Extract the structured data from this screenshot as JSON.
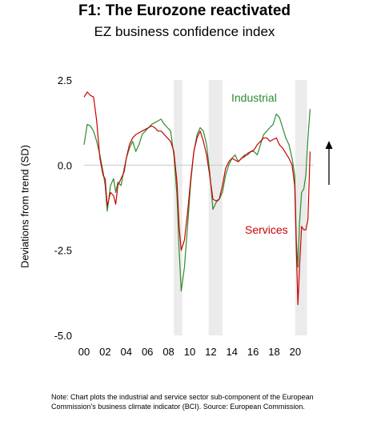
{
  "title": "F1: The Eurozone reactivated",
  "subtitle": "EZ business confidence index",
  "note": "Note: Chart plots the industrial and service sector sub-component of the European Commission's business climate indicator (BCI). Source: European Commission.",
  "chart_data": {
    "type": "line",
    "title": "F1: The Eurozone reactivated",
    "subtitle": "EZ business confidence index",
    "ylabel": "Deviations from trend (SD)",
    "xlabel": "",
    "xlim": [
      2000,
      2021.75
    ],
    "ylim": [
      -5.0,
      2.5
    ],
    "yticks": [
      "2.5",
      "0.0",
      "-2.5",
      "-5.0"
    ],
    "xticks": [
      "00",
      "02",
      "04",
      "06",
      "08",
      "10",
      "12",
      "14",
      "16",
      "18",
      "20"
    ],
    "shaded_periods": [
      [
        2008.5,
        2009.3
      ],
      [
        2011.8,
        2013.1
      ],
      [
        2020.0,
        2021.1
      ]
    ],
    "annotations": [
      {
        "text": "Industrial",
        "color": "#2e8b2e"
      },
      {
        "text": "Services",
        "color": "#cc0000"
      }
    ],
    "arrow": "up",
    "series": [
      {
        "name": "Industrial",
        "color": "#2e8b2e",
        "x": [
          2000.0,
          2000.3,
          2000.6,
          2000.9,
          2001.2,
          2001.5,
          2001.8,
          2002.0,
          2002.2,
          2002.5,
          2002.8,
          2003.0,
          2003.2,
          2003.5,
          2003.8,
          2004.0,
          2004.3,
          2004.6,
          2004.9,
          2005.2,
          2005.5,
          2005.8,
          2006.1,
          2006.4,
          2006.7,
          2007.0,
          2007.3,
          2007.6,
          2007.9,
          2008.2,
          2008.5,
          2008.8,
          2009.0,
          2009.2,
          2009.5,
          2009.8,
          2010.1,
          2010.4,
          2010.7,
          2011.0,
          2011.3,
          2011.6,
          2011.9,
          2012.2,
          2012.5,
          2012.8,
          2013.1,
          2013.4,
          2013.7,
          2014.0,
          2014.3,
          2014.6,
          2014.9,
          2015.2,
          2015.5,
          2015.8,
          2016.1,
          2016.4,
          2016.7,
          2017.0,
          2017.3,
          2017.6,
          2017.9,
          2018.2,
          2018.5,
          2018.8,
          2019.1,
          2019.4,
          2019.7,
          2019.95,
          2020.1,
          2020.25,
          2020.4,
          2020.6,
          2020.8,
          2021.0,
          2021.2,
          2021.4
        ],
        "values": [
          0.6,
          1.2,
          1.15,
          1.0,
          0.7,
          0.3,
          -0.2,
          -0.6,
          -1.35,
          -0.6,
          -0.4,
          -0.8,
          -0.5,
          -0.6,
          -0.1,
          0.2,
          0.5,
          0.7,
          0.4,
          0.6,
          0.9,
          1.0,
          1.1,
          1.2,
          1.25,
          1.3,
          1.35,
          1.2,
          1.1,
          1.0,
          0.3,
          -0.9,
          -2.5,
          -3.7,
          -3.0,
          -1.8,
          -0.5,
          0.4,
          0.9,
          1.1,
          1.0,
          0.6,
          -0.2,
          -1.3,
          -1.1,
          -1.0,
          -0.8,
          -0.3,
          0.0,
          0.2,
          0.3,
          0.1,
          0.2,
          0.3,
          0.3,
          0.4,
          0.4,
          0.3,
          0.6,
          0.9,
          1.0,
          1.1,
          1.2,
          1.5,
          1.4,
          1.1,
          0.8,
          0.6,
          0.2,
          -0.3,
          -2.2,
          -3.0,
          -1.7,
          -0.8,
          -0.7,
          -0.3,
          0.8,
          1.65
        ]
      },
      {
        "name": "Services",
        "color": "#cc0000",
        "x": [
          2000.0,
          2000.3,
          2000.6,
          2000.9,
          2001.2,
          2001.5,
          2001.8,
          2002.0,
          2002.2,
          2002.5,
          2002.8,
          2003.0,
          2003.2,
          2003.5,
          2003.8,
          2004.0,
          2004.3,
          2004.6,
          2004.9,
          2005.2,
          2005.5,
          2005.8,
          2006.1,
          2006.4,
          2006.7,
          2007.0,
          2007.3,
          2007.6,
          2007.9,
          2008.2,
          2008.5,
          2008.8,
          2009.0,
          2009.2,
          2009.5,
          2009.8,
          2010.1,
          2010.4,
          2010.7,
          2011.0,
          2011.3,
          2011.6,
          2011.9,
          2012.2,
          2012.5,
          2012.8,
          2013.1,
          2013.4,
          2013.7,
          2014.0,
          2014.3,
          2014.6,
          2014.9,
          2015.2,
          2015.5,
          2015.8,
          2016.1,
          2016.4,
          2016.7,
          2017.0,
          2017.3,
          2017.6,
          2017.9,
          2018.2,
          2018.5,
          2018.8,
          2019.1,
          2019.4,
          2019.7,
          2019.95,
          2020.1,
          2020.25,
          2020.4,
          2020.6,
          2020.8,
          2021.0,
          2021.2,
          2021.4
        ],
        "values": [
          2.0,
          2.15,
          2.05,
          2.0,
          1.3,
          0.2,
          -0.3,
          -0.4,
          -1.2,
          -0.8,
          -0.9,
          -1.15,
          -0.6,
          -0.4,
          -0.2,
          0.2,
          0.6,
          0.8,
          0.9,
          0.95,
          1.0,
          1.05,
          1.1,
          1.15,
          1.1,
          1.0,
          1.0,
          0.9,
          0.8,
          0.7,
          0.4,
          -0.5,
          -1.8,
          -2.5,
          -2.2,
          -1.4,
          -0.4,
          0.4,
          0.8,
          1.0,
          0.7,
          0.3,
          -0.3,
          -1.0,
          -1.05,
          -1.0,
          -0.6,
          -0.1,
          0.1,
          0.2,
          0.15,
          0.1,
          0.2,
          0.25,
          0.35,
          0.4,
          0.45,
          0.6,
          0.7,
          0.8,
          0.8,
          0.7,
          0.75,
          0.8,
          0.6,
          0.5,
          0.35,
          0.2,
          0.0,
          -0.6,
          -2.5,
          -4.1,
          -3.0,
          -1.8,
          -1.9,
          -1.9,
          -1.6,
          0.4
        ]
      }
    ]
  }
}
